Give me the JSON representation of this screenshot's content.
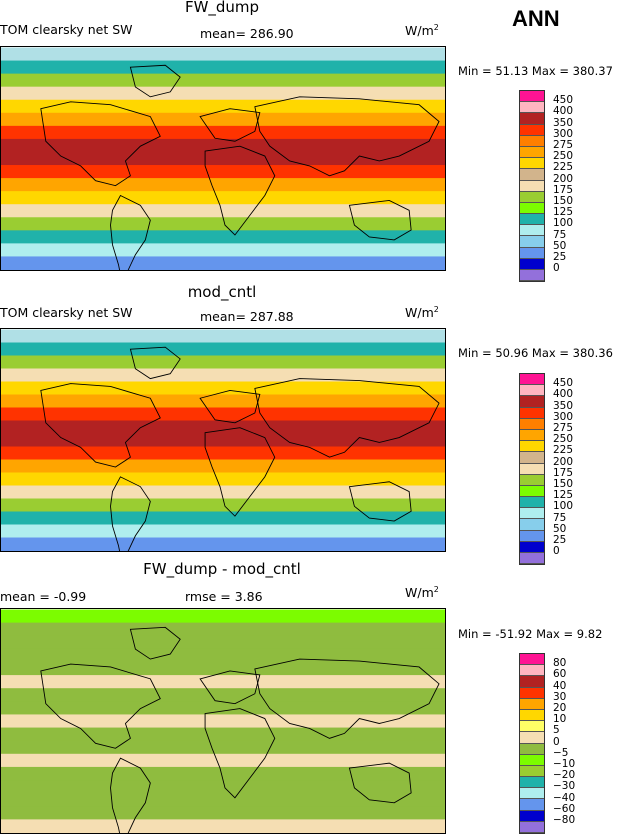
{
  "season": "ANN",
  "panels": [
    {
      "title": "FW_dump",
      "variable": "TOM clearsky net SW",
      "stats": "mean= 286.90",
      "rmse": "",
      "units_base": "W/m",
      "units_exp": "2",
      "minmax": "Min =   51.13 Max =  380.37",
      "levels": [
        "450",
        "400",
        "350",
        "300",
        "275",
        "250",
        "225",
        "200",
        "175",
        "150",
        "125",
        "100",
        "75",
        "50",
        "25",
        "0"
      ],
      "colors": [
        "#ff1493",
        "#ffb6c1",
        "#b22222",
        "#ff3300",
        "#ff7f00",
        "#ffa500",
        "#ffd700",
        "#d2b48c",
        "#f5deb3",
        "#9acd32",
        "#7cfc00",
        "#20b2aa",
        "#afeeee",
        "#87ceeb",
        "#6495ed",
        "#0000cd",
        "#9370db"
      ],
      "band_colors": [
        "#b0e0e6",
        "#20b2aa",
        "#9acd32",
        "#f5deb3",
        "#ffd700",
        "#ffa500",
        "#ff3300",
        "#b22222",
        "#b22222",
        "#ff3300",
        "#ffa500",
        "#ffd700",
        "#f5deb3",
        "#9acd32",
        "#20b2aa",
        "#afeeee",
        "#6495ed"
      ]
    },
    {
      "title": "mod_cntl",
      "variable": "TOM clearsky net SW",
      "stats": "mean= 287.88",
      "rmse": "",
      "units_base": "W/m",
      "units_exp": "2",
      "minmax": "Min =   50.96 Max =  380.36",
      "levels": [
        "450",
        "400",
        "350",
        "300",
        "275",
        "250",
        "225",
        "200",
        "175",
        "150",
        "125",
        "100",
        "75",
        "50",
        "25",
        "0"
      ],
      "colors": [
        "#ff1493",
        "#ffb6c1",
        "#b22222",
        "#ff3300",
        "#ff7f00",
        "#ffa500",
        "#ffd700",
        "#d2b48c",
        "#f5deb3",
        "#9acd32",
        "#7cfc00",
        "#20b2aa",
        "#afeeee",
        "#87ceeb",
        "#6495ed",
        "#0000cd",
        "#9370db"
      ],
      "band_colors": [
        "#b0e0e6",
        "#20b2aa",
        "#9acd32",
        "#f5deb3",
        "#ffd700",
        "#ffa500",
        "#ff3300",
        "#b22222",
        "#b22222",
        "#ff3300",
        "#ffa500",
        "#ffd700",
        "#f5deb3",
        "#9acd32",
        "#20b2aa",
        "#afeeee",
        "#6495ed"
      ]
    },
    {
      "title": "FW_dump - mod_cntl",
      "variable": "",
      "stats": "mean =   -0.99",
      "rmse": "rmse =    3.86",
      "units_base": "W/m",
      "units_exp": "2",
      "minmax": "Min =  -51.92 Max =    9.82",
      "levels": [
        "80",
        "60",
        "40",
        "30",
        "20",
        "10",
        "5",
        "0",
        "−5",
        "−10",
        "−20",
        "−30",
        "−40",
        "−60",
        "−80"
      ],
      "colors": [
        "#ff1493",
        "#ffb6c1",
        "#b22222",
        "#ff3300",
        "#ffa500",
        "#ffd700",
        "#ffff66",
        "#f5deb3",
        "#8fbc3f",
        "#7cfc00",
        "#9acd32",
        "#20b2aa",
        "#afeeee",
        "#6495ed",
        "#0000cd",
        "#9370db"
      ],
      "band_colors": [
        "#7cfc00",
        "#8fbc3f",
        "#8fbc3f",
        "#8fbc3f",
        "#8fbc3f",
        "#f5deb3",
        "#8fbc3f",
        "#8fbc3f",
        "#f5deb3",
        "#8fbc3f",
        "#8fbc3f",
        "#f5deb3",
        "#8fbc3f",
        "#8fbc3f",
        "#8fbc3f",
        "#8fbc3f",
        "#f5deb3"
      ]
    }
  ]
}
